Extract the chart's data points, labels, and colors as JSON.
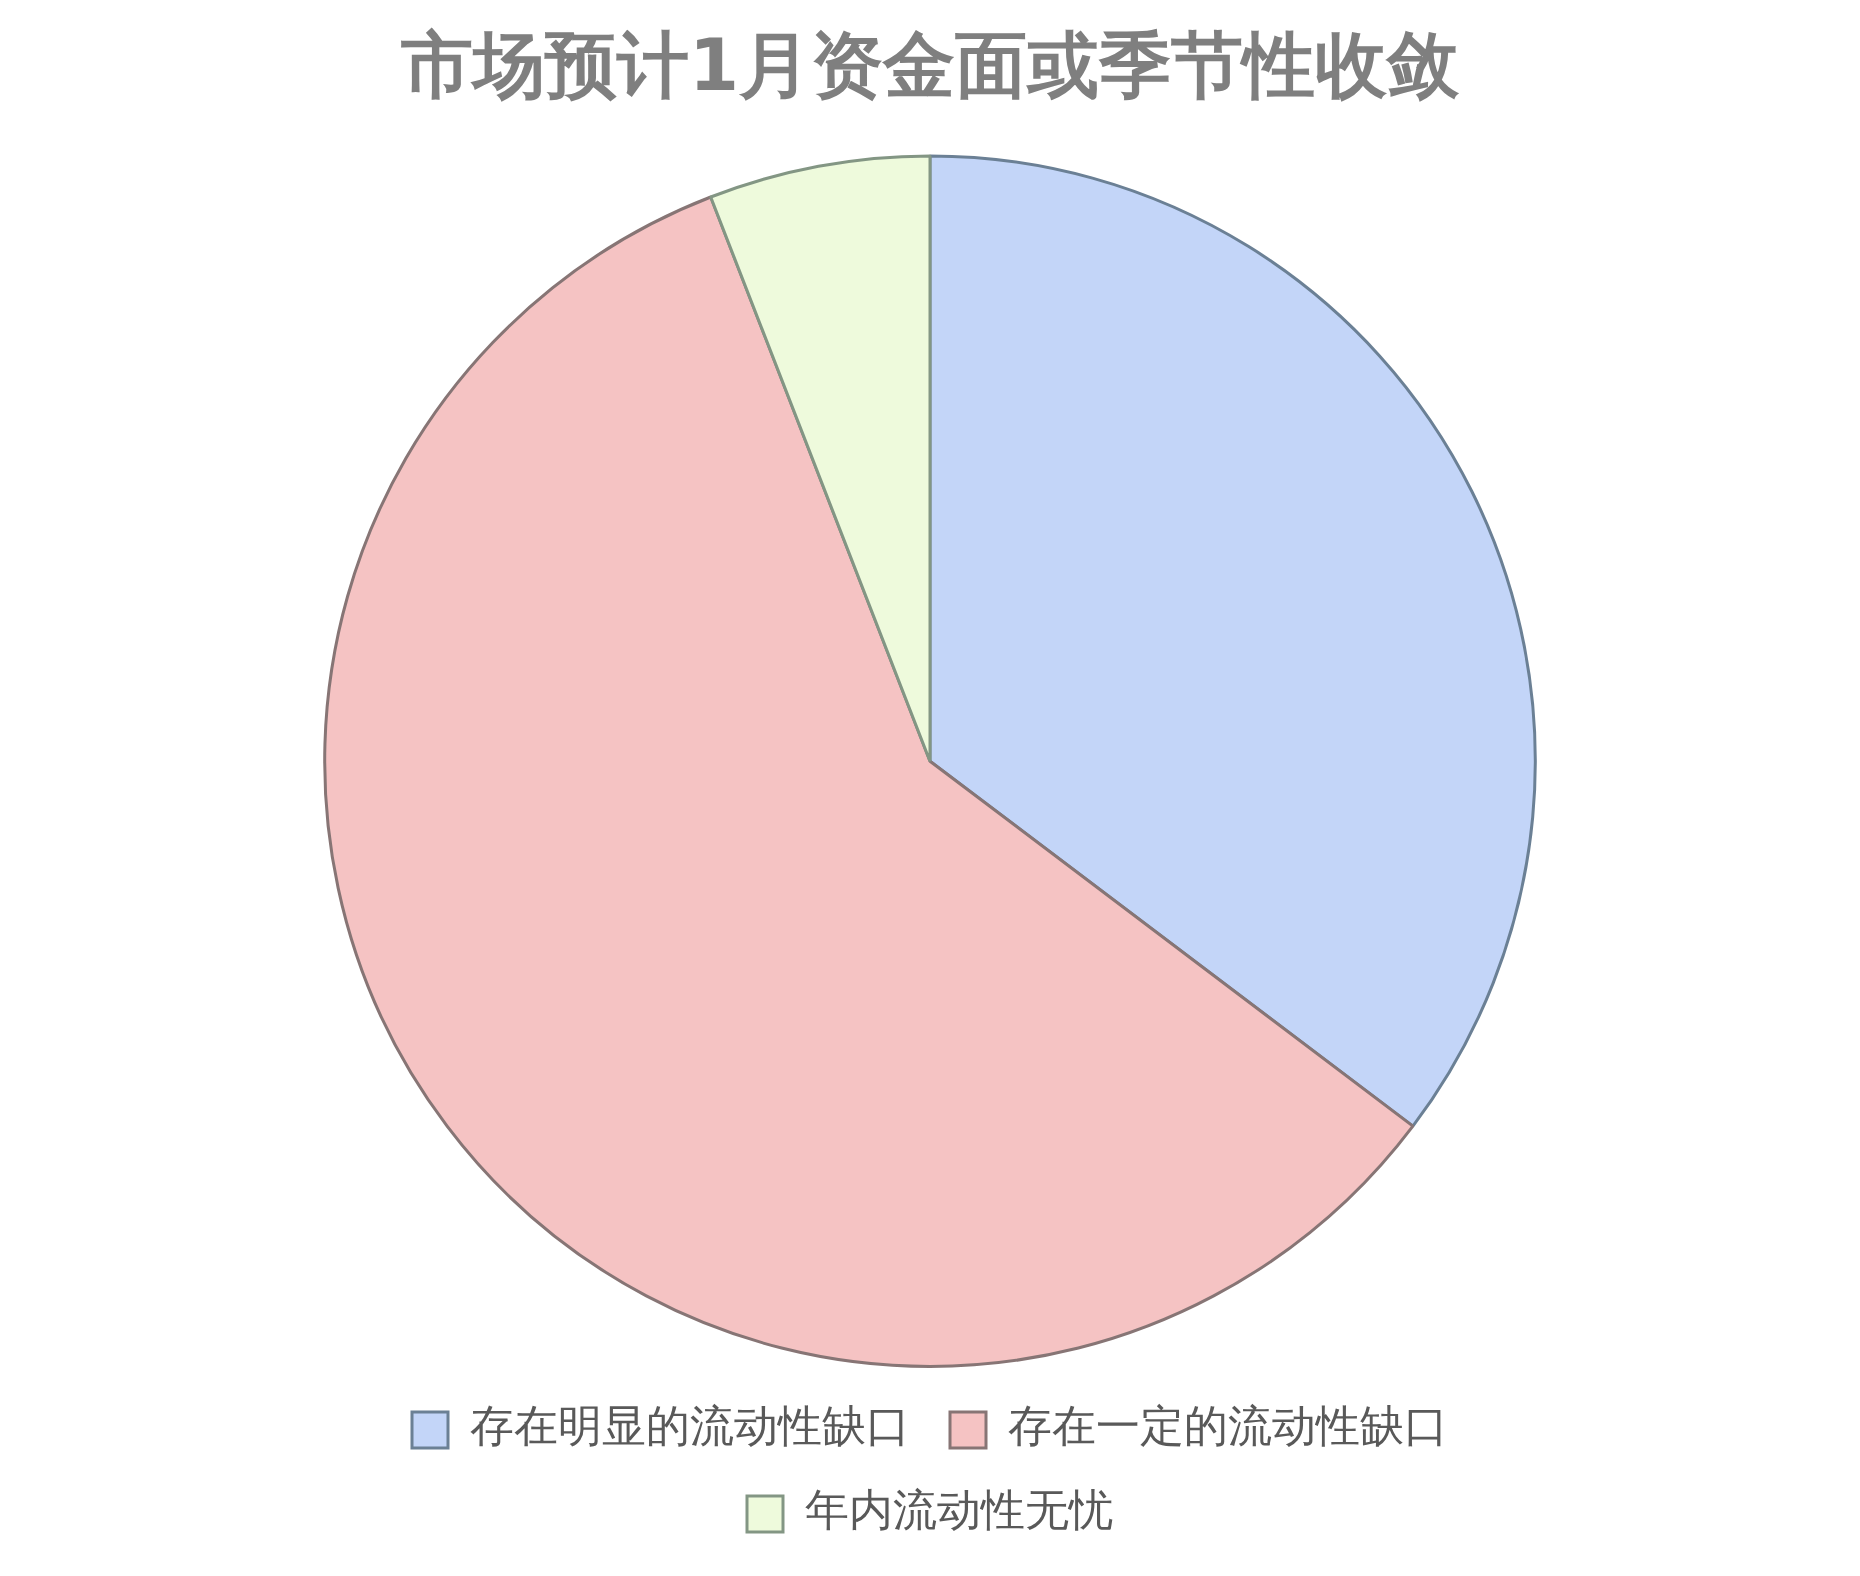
{
  "chart_data": {
    "type": "pie",
    "title": "市场预计1月资金面或季节性收敛",
    "categories": [
      "存在明显的流动性缺口",
      "存在一定的流动性缺口",
      "年内流动性无忧"
    ],
    "values": [
      35.3,
      58.8,
      5.9
    ],
    "colors": [
      "#c3d5f8",
      "#f5c3c3",
      "#eefadc"
    ],
    "legend": "bottom"
  }
}
